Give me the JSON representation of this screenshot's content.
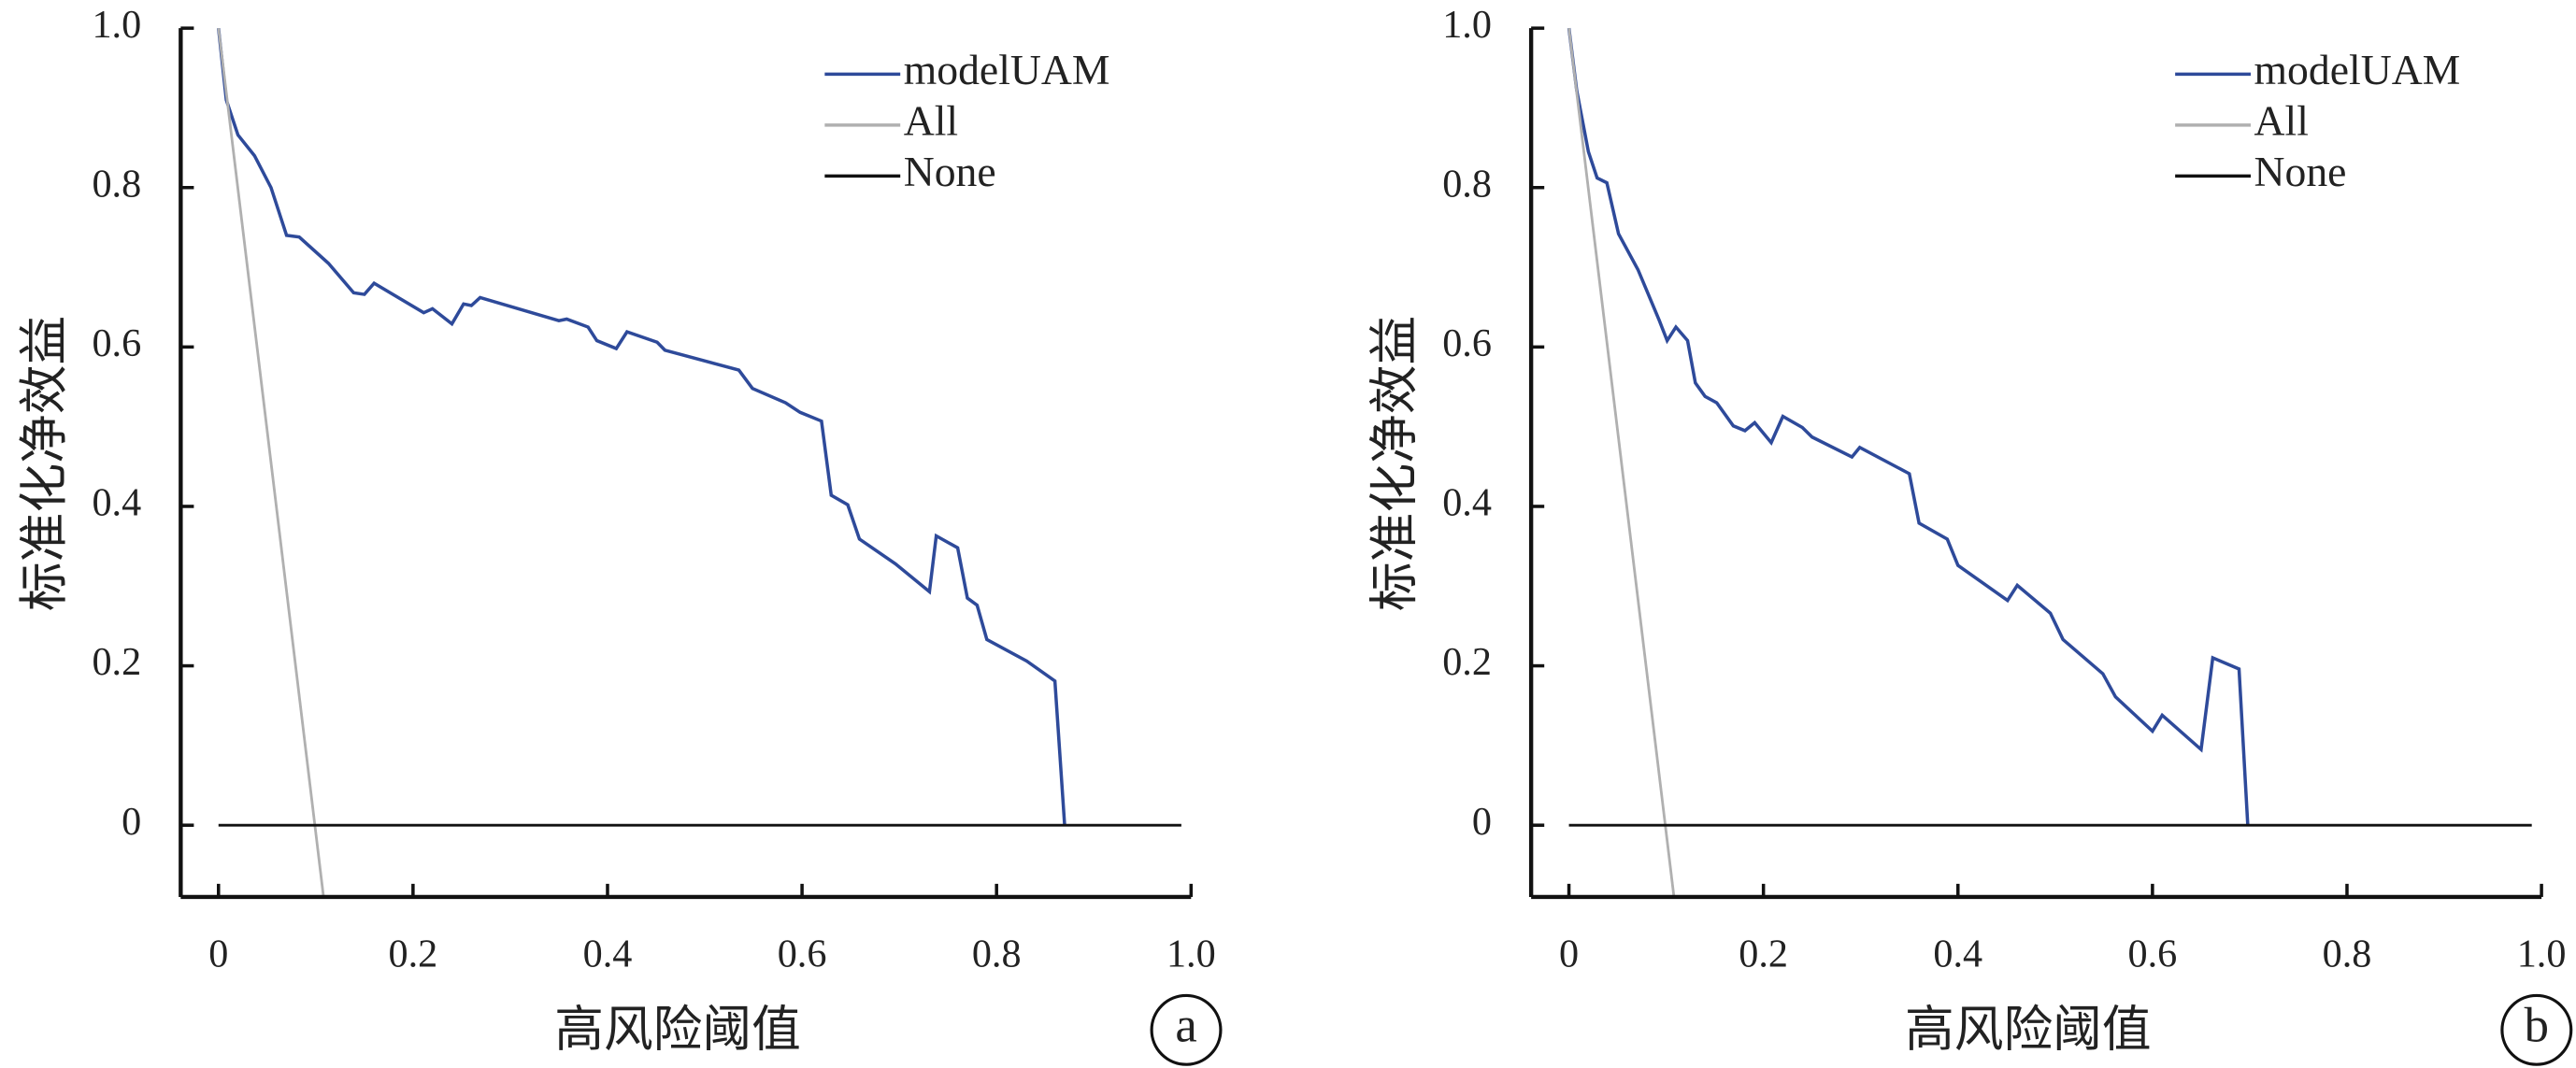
{
  "chart_data": [
    {
      "type": "line",
      "panel_label": "a",
      "xlabel": "高风险阈值",
      "ylabel": "标准化净效益",
      "xlim": [
        -0.04,
        1.0
      ],
      "ylim": [
        -0.09,
        1.0
      ],
      "xticks": [
        0,
        0.2,
        0.4,
        0.6,
        0.8,
        {
          "value": 1,
          "label": "1.0"
        }
      ],
      "yticks": [
        0,
        0.2,
        0.4,
        0.6,
        0.8,
        {
          "value": 1,
          "label": "1.0"
        }
      ],
      "legend": "upper right",
      "series": [
        {
          "name": "modelUAM",
          "color": "#2e4a9a",
          "x": [
            0,
            0.008,
            0.02,
            0.037,
            0.054,
            0.07,
            0.083,
            0.113,
            0.139,
            0.15,
            0.16,
            0.211,
            0.22,
            0.24,
            0.252,
            0.26,
            0.269,
            0.35,
            0.358,
            0.38,
            0.389,
            0.409,
            0.42,
            0.451,
            0.459,
            0.535,
            0.549,
            0.583,
            0.598,
            0.62,
            0.63,
            0.647,
            0.659,
            0.696,
            0.731,
            0.738,
            0.76,
            0.77,
            0.78,
            0.79,
            0.831,
            0.86,
            0.87
          ],
          "values": [
            1.0,
            0.91,
            0.866,
            0.84,
            0.8,
            0.74,
            0.738,
            0.705,
            0.668,
            0.666,
            0.68,
            0.643,
            0.648,
            0.629,
            0.654,
            0.652,
            0.662,
            0.633,
            0.635,
            0.625,
            0.608,
            0.598,
            0.619,
            0.606,
            0.596,
            0.571,
            0.548,
            0.53,
            0.518,
            0.507,
            0.414,
            0.402,
            0.359,
            0.328,
            0.293,
            0.363,
            0.348,
            0.285,
            0.276,
            0.233,
            0.206,
            0.181,
            0
          ]
        },
        {
          "name": "All",
          "color": "#b0b0b0",
          "x": [
            0,
            0.108
          ],
          "values": [
            1.0,
            -0.09
          ]
        },
        {
          "name": "None",
          "color": "#111111",
          "x": [
            0,
            0.99
          ],
          "values": [
            0,
            0
          ]
        }
      ]
    },
    {
      "type": "line",
      "panel_label": "b",
      "xlabel": "高风险阈值",
      "ylabel": "标准化净效益",
      "xlim": [
        -0.04,
        1.0
      ],
      "ylim": [
        -0.09,
        1.0
      ],
      "xticks": [
        0,
        0.2,
        0.4,
        0.6,
        0.8,
        {
          "value": 1,
          "label": "1.0"
        }
      ],
      "yticks": [
        0,
        0.2,
        0.4,
        0.6,
        0.8,
        {
          "value": 1,
          "label": "1.0"
        }
      ],
      "legend": "upper right",
      "series": [
        {
          "name": "modelUAM",
          "color": "#2e4a9a",
          "x": [
            0,
            0.008,
            0.02,
            0.029,
            0.039,
            0.051,
            0.071,
            0.093,
            0.101,
            0.11,
            0.122,
            0.13,
            0.14,
            0.152,
            0.169,
            0.181,
            0.191,
            0.208,
            0.22,
            0.24,
            0.25,
            0.291,
            0.299,
            0.35,
            0.36,
            0.389,
            0.4,
            0.451,
            0.461,
            0.495,
            0.508,
            0.549,
            0.562,
            0.6,
            0.61,
            0.65,
            0.662,
            0.689,
            0.698
          ],
          "values": [
            1.0,
            0.922,
            0.845,
            0.812,
            0.806,
            0.742,
            0.697,
            0.633,
            0.608,
            0.625,
            0.608,
            0.555,
            0.538,
            0.53,
            0.501,
            0.495,
            0.505,
            0.48,
            0.513,
            0.499,
            0.487,
            0.462,
            0.474,
            0.441,
            0.379,
            0.359,
            0.326,
            0.282,
            0.301,
            0.266,
            0.233,
            0.19,
            0.161,
            0.118,
            0.138,
            0.095,
            0.21,
            0.196,
            0
          ]
        },
        {
          "name": "All",
          "color": "#b0b0b0",
          "x": [
            0,
            0.108
          ],
          "values": [
            1.0,
            -0.09
          ]
        },
        {
          "name": "None",
          "color": "#111111",
          "x": [
            0,
            0.99
          ],
          "values": [
            0,
            0
          ]
        }
      ]
    }
  ]
}
